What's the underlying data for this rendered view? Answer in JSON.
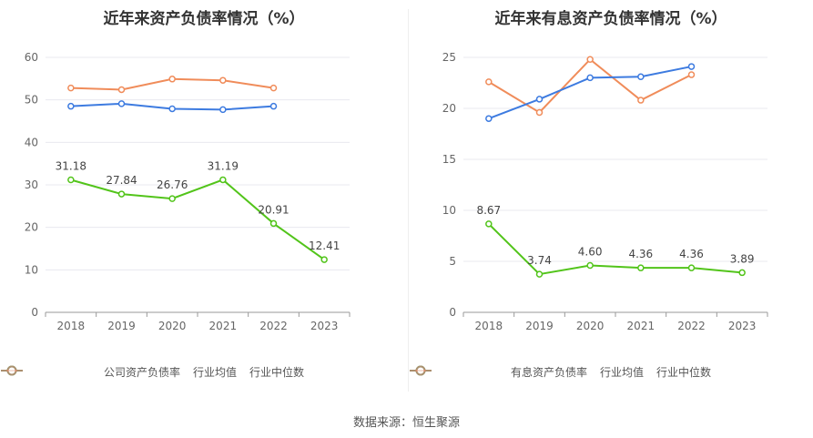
{
  "source_text": "数据来源：恒生聚源",
  "chart_data": [
    {
      "type": "line",
      "title": "近年来资产负债率情况（%）",
      "categories": [
        "2018",
        "2019",
        "2020",
        "2021",
        "2022",
        "2023"
      ],
      "ylim": [
        0,
        60
      ],
      "yticks": [
        0,
        10,
        20,
        30,
        40,
        50,
        60
      ],
      "grid": true,
      "legend_position": "bottom",
      "series": [
        {
          "name": "公司资产负债率",
          "color": "#52c41a",
          "values": [
            31.18,
            27.84,
            26.76,
            31.19,
            20.91,
            12.41
          ],
          "labels": [
            "31.18",
            "27.84",
            "26.76",
            "31.19",
            "20.91",
            "12.41"
          ],
          "show_labels": true
        },
        {
          "name": "行业均值",
          "color": "#3d7be0",
          "values": [
            48.5,
            49.1,
            47.9,
            47.7,
            48.5,
            null
          ],
          "show_labels": false
        },
        {
          "name": "行业中位数",
          "color": "#f08c5a",
          "values": [
            52.8,
            52.4,
            54.9,
            54.6,
            52.8,
            null
          ],
          "show_labels": false
        }
      ]
    },
    {
      "type": "line",
      "title": "近年来有息资产负债率情况（%）",
      "categories": [
        "2018",
        "2019",
        "2020",
        "2021",
        "2022",
        "2023"
      ],
      "ylim": [
        0,
        25
      ],
      "yticks": [
        0,
        5,
        10,
        15,
        20,
        25
      ],
      "grid": true,
      "legend_position": "bottom",
      "series": [
        {
          "name": "有息资产负债率",
          "color": "#52c41a",
          "values": [
            8.67,
            3.74,
            4.6,
            4.36,
            4.36,
            3.89
          ],
          "labels": [
            "8.67",
            "3.74",
            "4.60",
            "4.36",
            "4.36",
            "3.89"
          ],
          "show_labels": true
        },
        {
          "name": "行业均值",
          "color": "#3d7be0",
          "values": [
            19.0,
            20.9,
            23.0,
            23.1,
            24.1,
            null
          ],
          "show_labels": false
        },
        {
          "name": "行业中位数",
          "color": "#f08c5a",
          "values": [
            22.6,
            19.6,
            24.8,
            20.8,
            23.3,
            null
          ],
          "show_labels": false
        }
      ]
    }
  ]
}
